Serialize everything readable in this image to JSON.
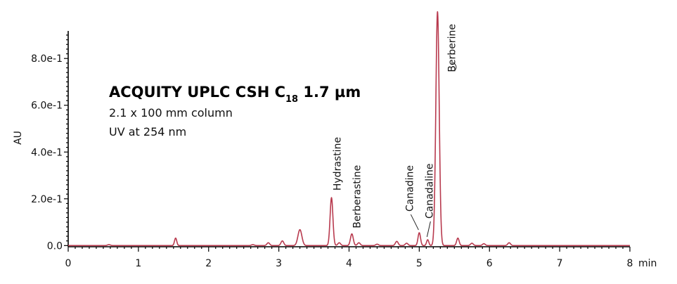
{
  "chart_data": {
    "type": "line",
    "title": "ACQUITY UPLC CSH C",
    "title_subscript": "18",
    "title_suffix": " 1.7 µm",
    "subtitles": [
      "2.1 x 100 mm column",
      "UV at 254 nm"
    ],
    "ylabel": "AU",
    "x_unit": "min",
    "xlim": [
      0,
      8
    ],
    "ylim": [
      -0.005,
      1.02
    ],
    "x_ticks": [
      "0",
      "1",
      "2",
      "3",
      "4",
      "5",
      "6",
      "7",
      "8"
    ],
    "y_ticks": [
      {
        "value": 0.0,
        "label": "0.0"
      },
      {
        "value": 0.2,
        "label": "2.0e-1"
      },
      {
        "value": 0.4,
        "label": "4.0e-1"
      },
      {
        "value": 0.6,
        "label": "6.0e-1"
      },
      {
        "value": 0.8,
        "label": "8.0e-1"
      }
    ],
    "grid": false,
    "line_color": "#b83a4e",
    "peaks": [
      {
        "rt": 0.58,
        "height": 0.004,
        "width": 0.02
      },
      {
        "rt": 1.53,
        "height": 0.032,
        "width": 0.016
      },
      {
        "rt": 2.63,
        "height": 0.004,
        "width": 0.02
      },
      {
        "rt": 2.85,
        "height": 0.012,
        "width": 0.02
      },
      {
        "rt": 3.05,
        "height": 0.02,
        "width": 0.02
      },
      {
        "rt": 3.3,
        "height": 0.068,
        "width": 0.028
      },
      {
        "rt": 3.75,
        "height": 0.205,
        "width": 0.02
      },
      {
        "rt": 3.86,
        "height": 0.012,
        "width": 0.02
      },
      {
        "rt": 4.04,
        "height": 0.05,
        "width": 0.02
      },
      {
        "rt": 4.14,
        "height": 0.012,
        "width": 0.02
      },
      {
        "rt": 4.4,
        "height": 0.006,
        "width": 0.02
      },
      {
        "rt": 4.68,
        "height": 0.018,
        "width": 0.02
      },
      {
        "rt": 4.82,
        "height": 0.01,
        "width": 0.02
      },
      {
        "rt": 5.0,
        "height": 0.055,
        "width": 0.018
      },
      {
        "rt": 5.12,
        "height": 0.025,
        "width": 0.016
      },
      {
        "rt": 5.26,
        "height": 1.0,
        "width": 0.024
      },
      {
        "rt": 5.55,
        "height": 0.032,
        "width": 0.018
      },
      {
        "rt": 5.75,
        "height": 0.01,
        "width": 0.02
      },
      {
        "rt": 5.92,
        "height": 0.008,
        "width": 0.02
      },
      {
        "rt": 6.28,
        "height": 0.012,
        "width": 0.02
      }
    ],
    "annotations": [
      {
        "label": "Hydrastine",
        "rt": 3.75,
        "apex": 0.205
      },
      {
        "label": "Berberastine",
        "rt": 4.04,
        "apex": 0.05
      },
      {
        "label": "Canadine",
        "rt": 5.0,
        "apex": 0.055
      },
      {
        "label": "Canadaline",
        "rt": 5.12,
        "apex": 0.025
      },
      {
        "label": "Berberine",
        "rt": 5.26,
        "apex": 1.0
      }
    ]
  }
}
